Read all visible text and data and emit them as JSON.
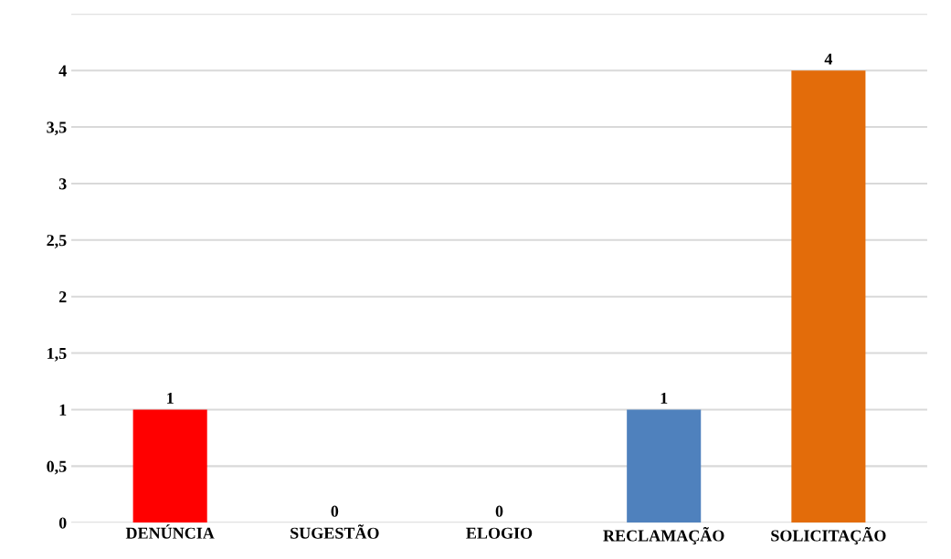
{
  "chart_data": {
    "type": "bar",
    "categories": [
      "DENÚNCIA",
      "SUGESTÃO",
      "ELOGIO",
      "RECLAMAÇÃO",
      "SOLICITAÇÃO"
    ],
    "values": [
      1,
      0,
      0,
      1,
      4
    ],
    "colors": [
      "#ff0000",
      "#00804a",
      "#c8c800",
      "#4f81bd",
      "#e36c0a"
    ],
    "ylim": [
      0,
      4.5
    ],
    "yticks": [
      0,
      {
        "value": 0.5,
        "label": "0,5"
      },
      1,
      {
        "value": 1.5,
        "label": "1,5"
      },
      2,
      {
        "value": 2.5,
        "label": "2,5"
      },
      3,
      {
        "value": 3.5,
        "label": "3,5"
      },
      4,
      {
        "value": 4.5,
        "label": null
      }
    ],
    "grid": "y",
    "data_labels": true
  }
}
